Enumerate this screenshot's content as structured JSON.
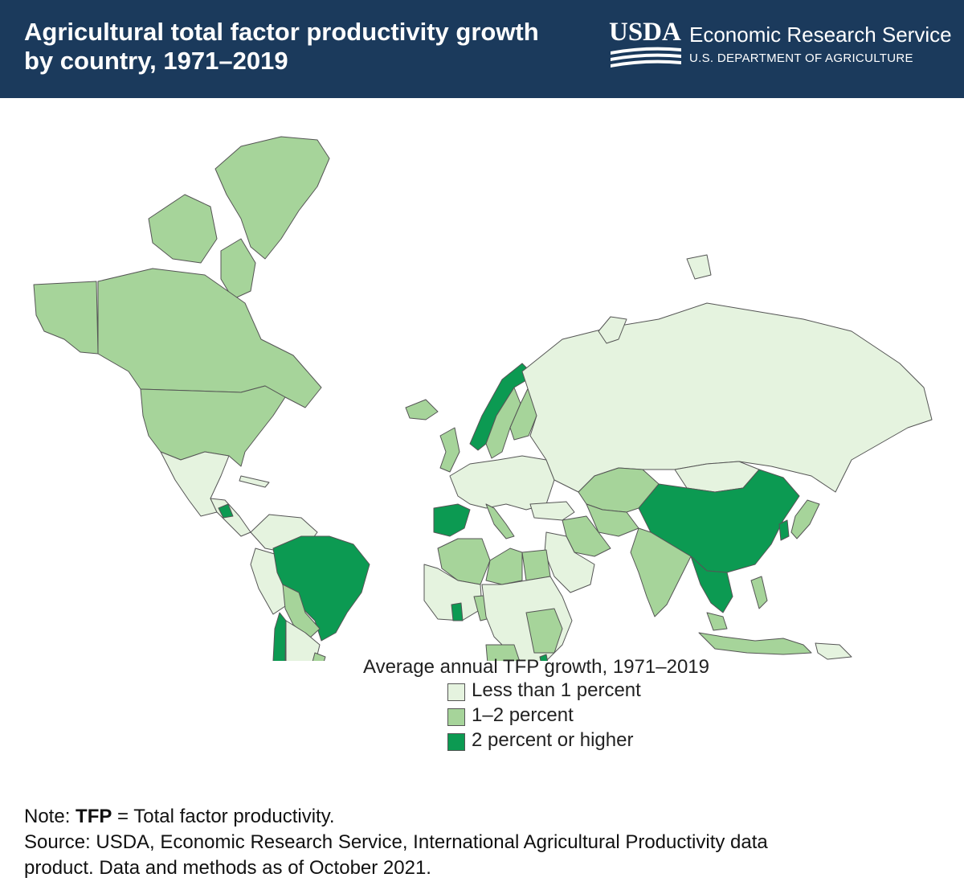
{
  "header": {
    "title_line1": "Agricultural total factor productivity growth",
    "title_line2": "by country, 1971–2019",
    "logo_text": "USDA",
    "agency": "Economic Research Service",
    "department": "U.S. DEPARTMENT OF AGRICULTURE"
  },
  "colors": {
    "header_bg": "#1b3a5c",
    "less_than_1": "#e5f3df",
    "one_to_two": "#a6d49a",
    "two_plus": "#0c9a52",
    "border": "#555555"
  },
  "legend": {
    "title": "Average annual TFP growth, 1971–2019",
    "items": [
      {
        "label": "Less than 1 percent",
        "color": "#e5f3df"
      },
      {
        "label": "1–2 percent",
        "color": "#a6d49a"
      },
      {
        "label": "2 percent or higher",
        "color": "#0c9a52"
      }
    ]
  },
  "notes": {
    "note_prefix": "Note: ",
    "note_bold": "TFP",
    "note_rest": " = Total factor productivity.",
    "source_line1": "Source: USDA, Economic Research Service, International Agricultural Productivity data",
    "source_line2": "product. Data and methods as of October 2021."
  }
}
